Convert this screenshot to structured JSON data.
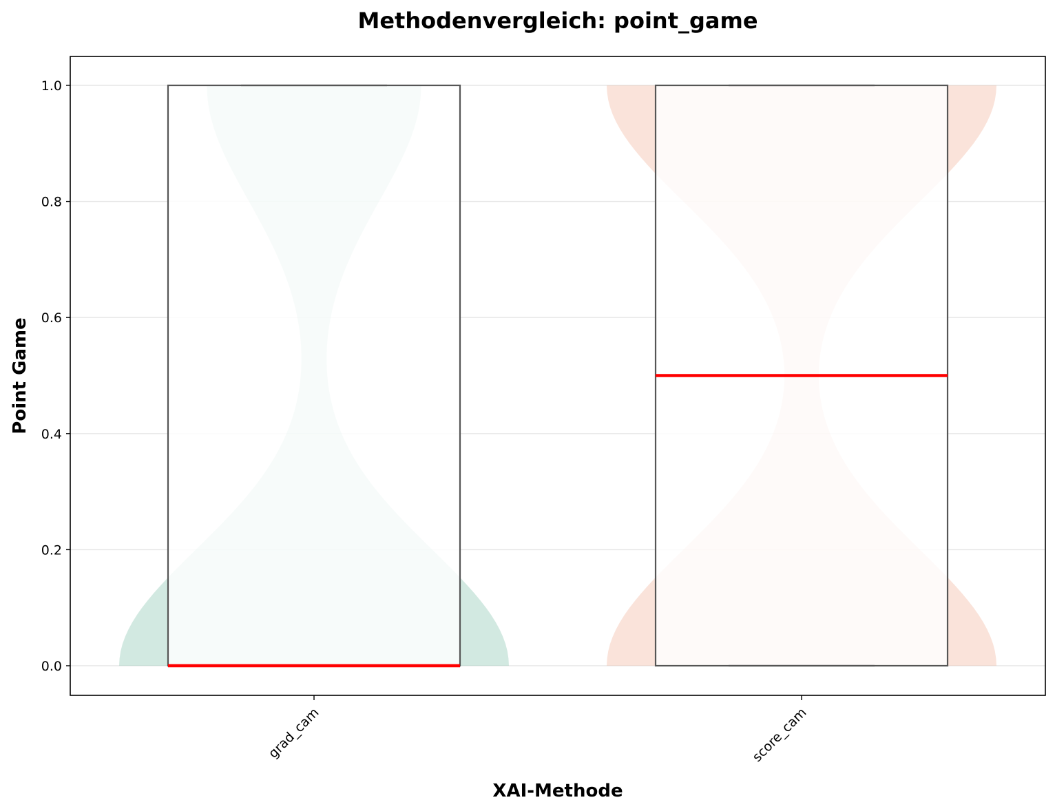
{
  "chart_data": {
    "type": "violin+box",
    "title": "Methodenvergleich: point_game",
    "xlabel": "XAI-Methode",
    "ylabel": "Point Game",
    "ylim": [
      -0.05,
      1.05
    ],
    "yticks": [
      "0.0",
      "0.2",
      "0.4",
      "0.6",
      "0.8",
      "1.0"
    ],
    "grid": "horizontal",
    "categories": [
      "grad_cam",
      "score_cam"
    ],
    "series": [
      {
        "category": "grad_cam",
        "color": "#8fc9b3",
        "box": {
          "min": 0.0,
          "q1": 0.0,
          "median": 0.0,
          "q3": 1.0,
          "max": 1.0
        },
        "density_peak_bottom": 0.0,
        "density_peak_top": 1.0,
        "density_bottom_relative": 1.0,
        "density_top_relative": 0.55
      },
      {
        "category": "score_cam",
        "color": "#f2b8a3",
        "box": {
          "min": 0.0,
          "q1": 0.0,
          "median": 0.5,
          "q3": 1.0,
          "max": 1.0
        },
        "density_peak_bottom": 0.0,
        "density_peak_top": 1.0,
        "density_bottom_relative": 1.0,
        "density_top_relative": 1.0
      }
    ],
    "median_color": "#ff0000"
  }
}
